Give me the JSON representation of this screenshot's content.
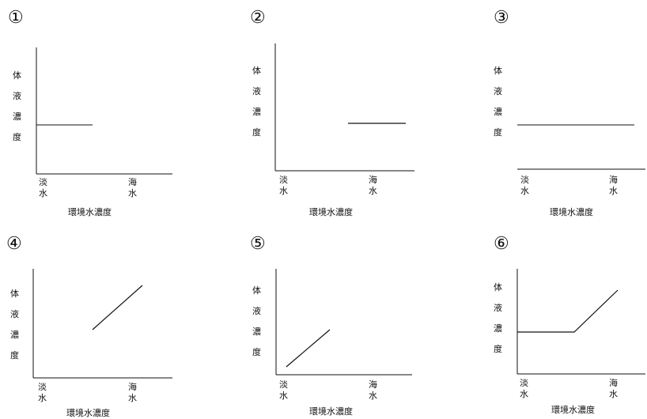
{
  "panels": [
    {
      "id": 1,
      "number": "①",
      "y_label": [
        "体",
        "液",
        "濃",
        "度"
      ],
      "x_low": [
        "淡",
        "水"
      ],
      "x_high": [
        "海",
        "水"
      ],
      "x_title": "環境水濃度"
    },
    {
      "id": 2,
      "number": "②",
      "y_label": [
        "体",
        "液",
        "濃",
        "度"
      ],
      "x_low": [
        "淡",
        "水"
      ],
      "x_high": [
        "海",
        "水"
      ],
      "x_title": "環境水濃度"
    },
    {
      "id": 3,
      "number": "③",
      "y_label": [
        "体",
        "液",
        "濃",
        "度"
      ],
      "x_low": [
        "淡",
        "水"
      ],
      "x_high": [
        "海",
        "水"
      ],
      "x_title": "環境水濃度"
    },
    {
      "id": 4,
      "number": "④",
      "y_label": [
        "体",
        "液",
        "濃",
        "度"
      ],
      "x_low": [
        "淡",
        "水"
      ],
      "x_high": [
        "海",
        "水"
      ],
      "x_title": "環境水濃度"
    },
    {
      "id": 5,
      "number": "⑤",
      "y_label": [
        "体",
        "液",
        "濃",
        "度"
      ],
      "x_low": [
        "淡",
        "水"
      ],
      "x_high": [
        "海",
        "水"
      ],
      "x_title": "環境水濃度"
    },
    {
      "id": 6,
      "number": "⑥",
      "y_label": [
        "体",
        "液",
        "濃",
        "度"
      ],
      "x_low": [
        "淡",
        "水"
      ],
      "x_high": [
        "海",
        "水"
      ],
      "x_title": "環境水濃度"
    }
  ]
}
